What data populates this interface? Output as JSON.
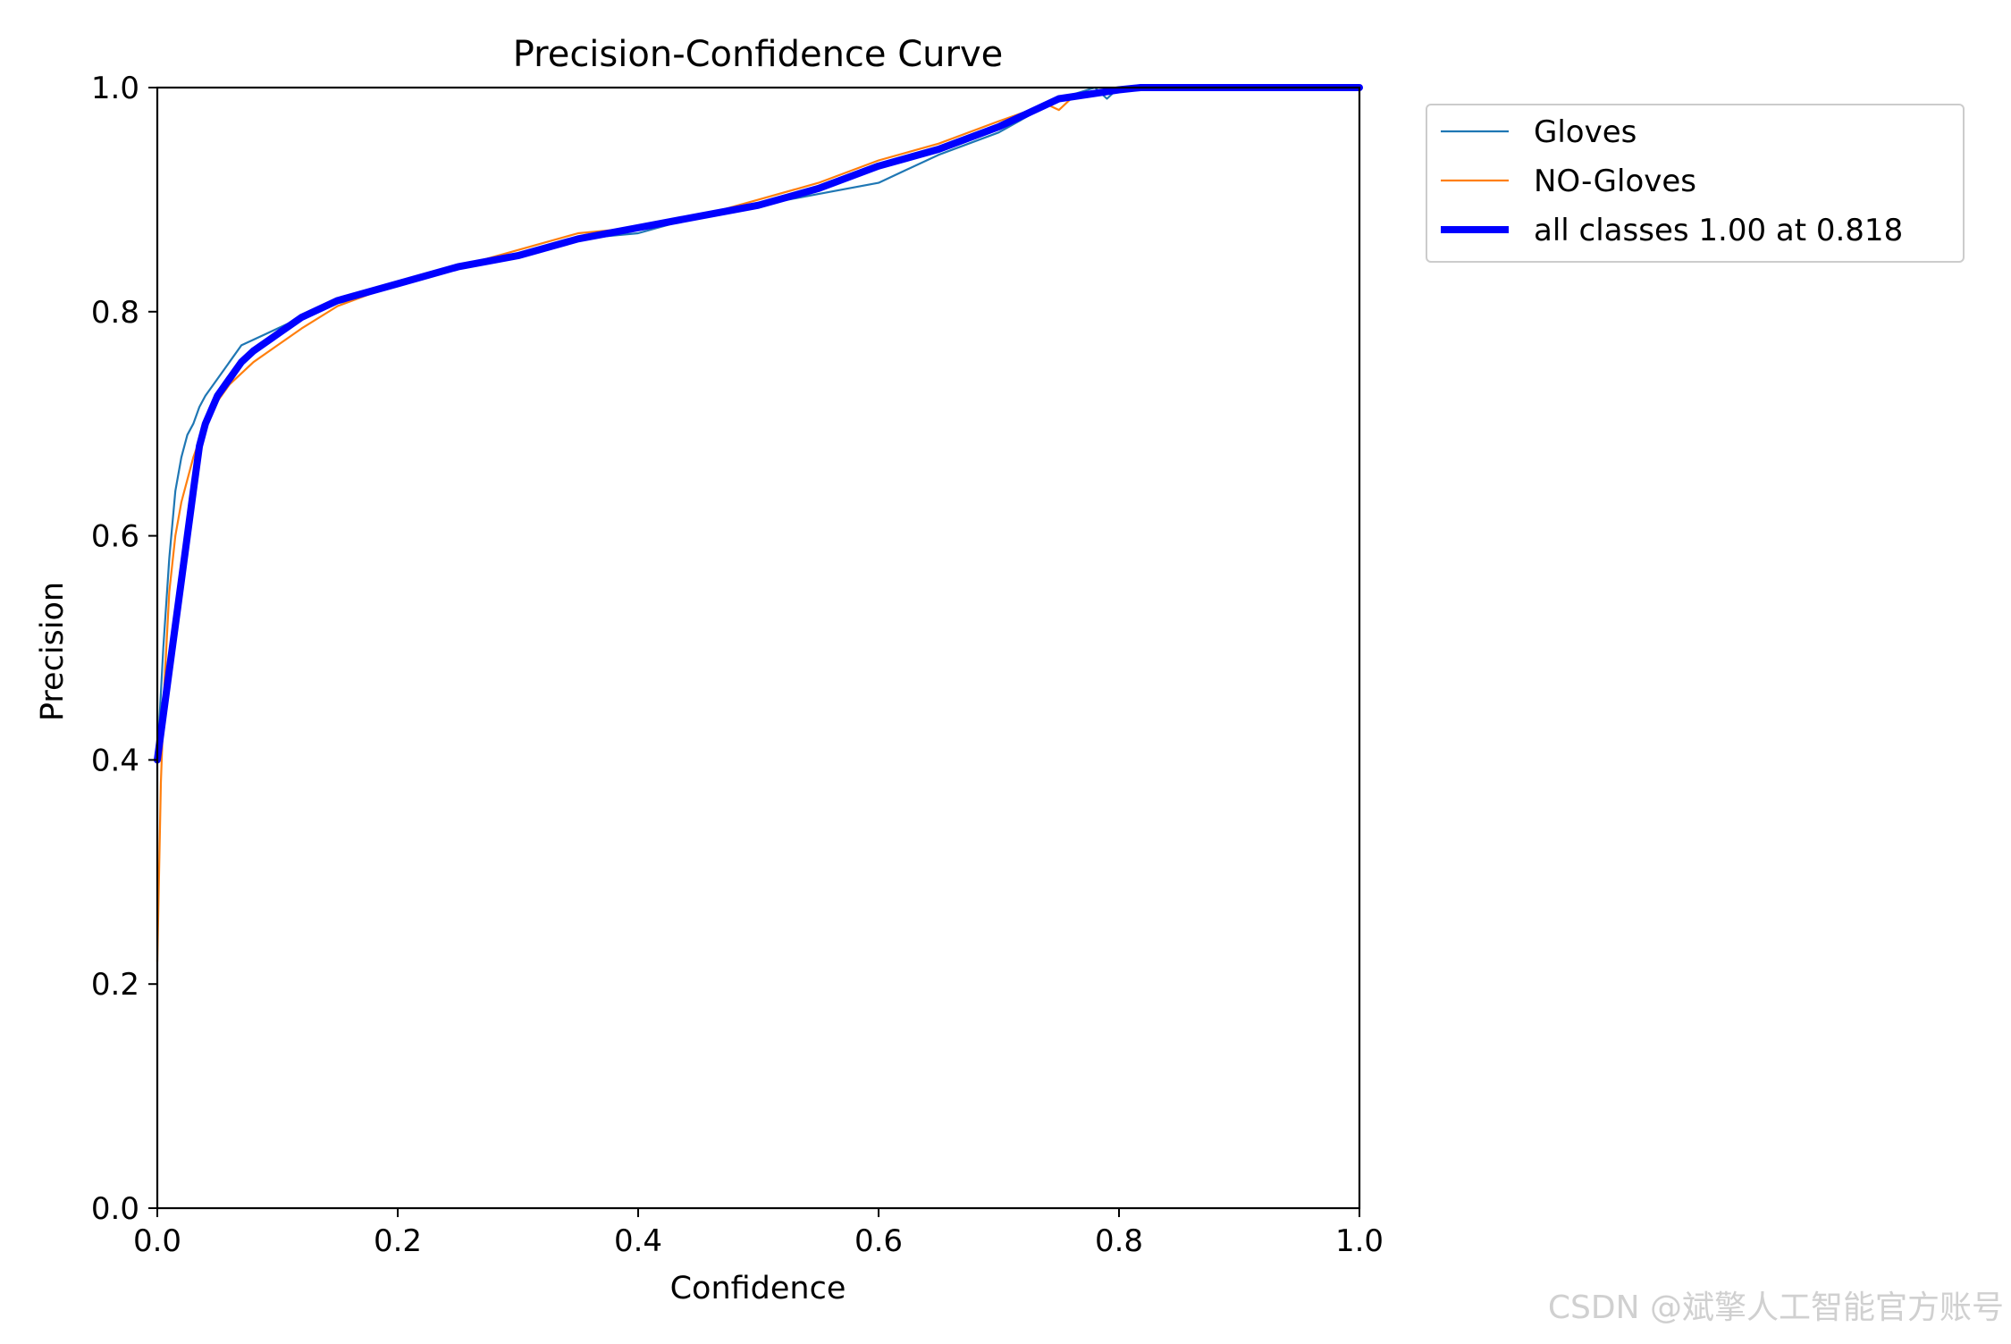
{
  "chart_data": {
    "type": "line",
    "title": "Precision-Confidence Curve",
    "xlabel": "Confidence",
    "ylabel": "Precision",
    "xlim": [
      0,
      1
    ],
    "ylim": [
      0,
      1
    ],
    "xticks": [
      "0.0",
      "0.2",
      "0.4",
      "0.6",
      "0.8",
      "1.0"
    ],
    "yticks": [
      "0.0",
      "0.2",
      "0.4",
      "0.6",
      "0.8",
      "1.0"
    ],
    "grid": false,
    "legend_position": "outside-upper-right",
    "series": [
      {
        "name": "Gloves",
        "color": "#1f77b4",
        "x": [
          0.0,
          0.005,
          0.01,
          0.015,
          0.02,
          0.025,
          0.03,
          0.035,
          0.04,
          0.05,
          0.06,
          0.07,
          0.08,
          0.09,
          0.1,
          0.12,
          0.14,
          0.16,
          0.2,
          0.25,
          0.3,
          0.35,
          0.4,
          0.45,
          0.5,
          0.55,
          0.6,
          0.62,
          0.65,
          0.7,
          0.75,
          0.78,
          0.79,
          0.8,
          1.0
        ],
        "y": [
          0.4,
          0.5,
          0.58,
          0.64,
          0.67,
          0.69,
          0.7,
          0.715,
          0.725,
          0.74,
          0.755,
          0.77,
          0.775,
          0.78,
          0.785,
          0.795,
          0.805,
          0.81,
          0.825,
          0.84,
          0.85,
          0.865,
          0.87,
          0.885,
          0.895,
          0.905,
          0.915,
          0.925,
          0.94,
          0.96,
          0.99,
          1.0,
          0.99,
          1.0,
          1.0
        ]
      },
      {
        "name": "NO-Gloves",
        "color": "#ff7f0e",
        "x": [
          0.0,
          0.003,
          0.006,
          0.01,
          0.015,
          0.02,
          0.03,
          0.04,
          0.05,
          0.06,
          0.08,
          0.1,
          0.12,
          0.15,
          0.2,
          0.25,
          0.3,
          0.35,
          0.4,
          0.45,
          0.5,
          0.55,
          0.6,
          0.65,
          0.7,
          0.74,
          0.75,
          0.76,
          0.8,
          1.0
        ],
        "y": [
          0.22,
          0.38,
          0.47,
          0.55,
          0.6,
          0.63,
          0.67,
          0.7,
          0.72,
          0.735,
          0.755,
          0.77,
          0.785,
          0.805,
          0.825,
          0.84,
          0.855,
          0.87,
          0.875,
          0.885,
          0.9,
          0.915,
          0.935,
          0.95,
          0.97,
          0.985,
          0.98,
          0.99,
          1.0,
          1.0
        ]
      },
      {
        "name": "all classes 1.00 at 0.818",
        "color": "#0000ff",
        "x": [
          0.0,
          0.01,
          0.02,
          0.025,
          0.03,
          0.035,
          0.04,
          0.05,
          0.06,
          0.07,
          0.08,
          0.1,
          0.12,
          0.15,
          0.2,
          0.25,
          0.3,
          0.35,
          0.4,
          0.45,
          0.5,
          0.55,
          0.6,
          0.65,
          0.7,
          0.75,
          0.8,
          0.818,
          1.0
        ],
        "y": [
          0.4,
          0.48,
          0.56,
          0.6,
          0.64,
          0.68,
          0.7,
          0.725,
          0.74,
          0.755,
          0.765,
          0.78,
          0.795,
          0.81,
          0.825,
          0.84,
          0.85,
          0.865,
          0.875,
          0.885,
          0.895,
          0.91,
          0.93,
          0.945,
          0.965,
          0.99,
          0.998,
          1.0,
          1.0
        ]
      }
    ]
  },
  "watermark": "CSDN @斌擎人工智能官方账号"
}
